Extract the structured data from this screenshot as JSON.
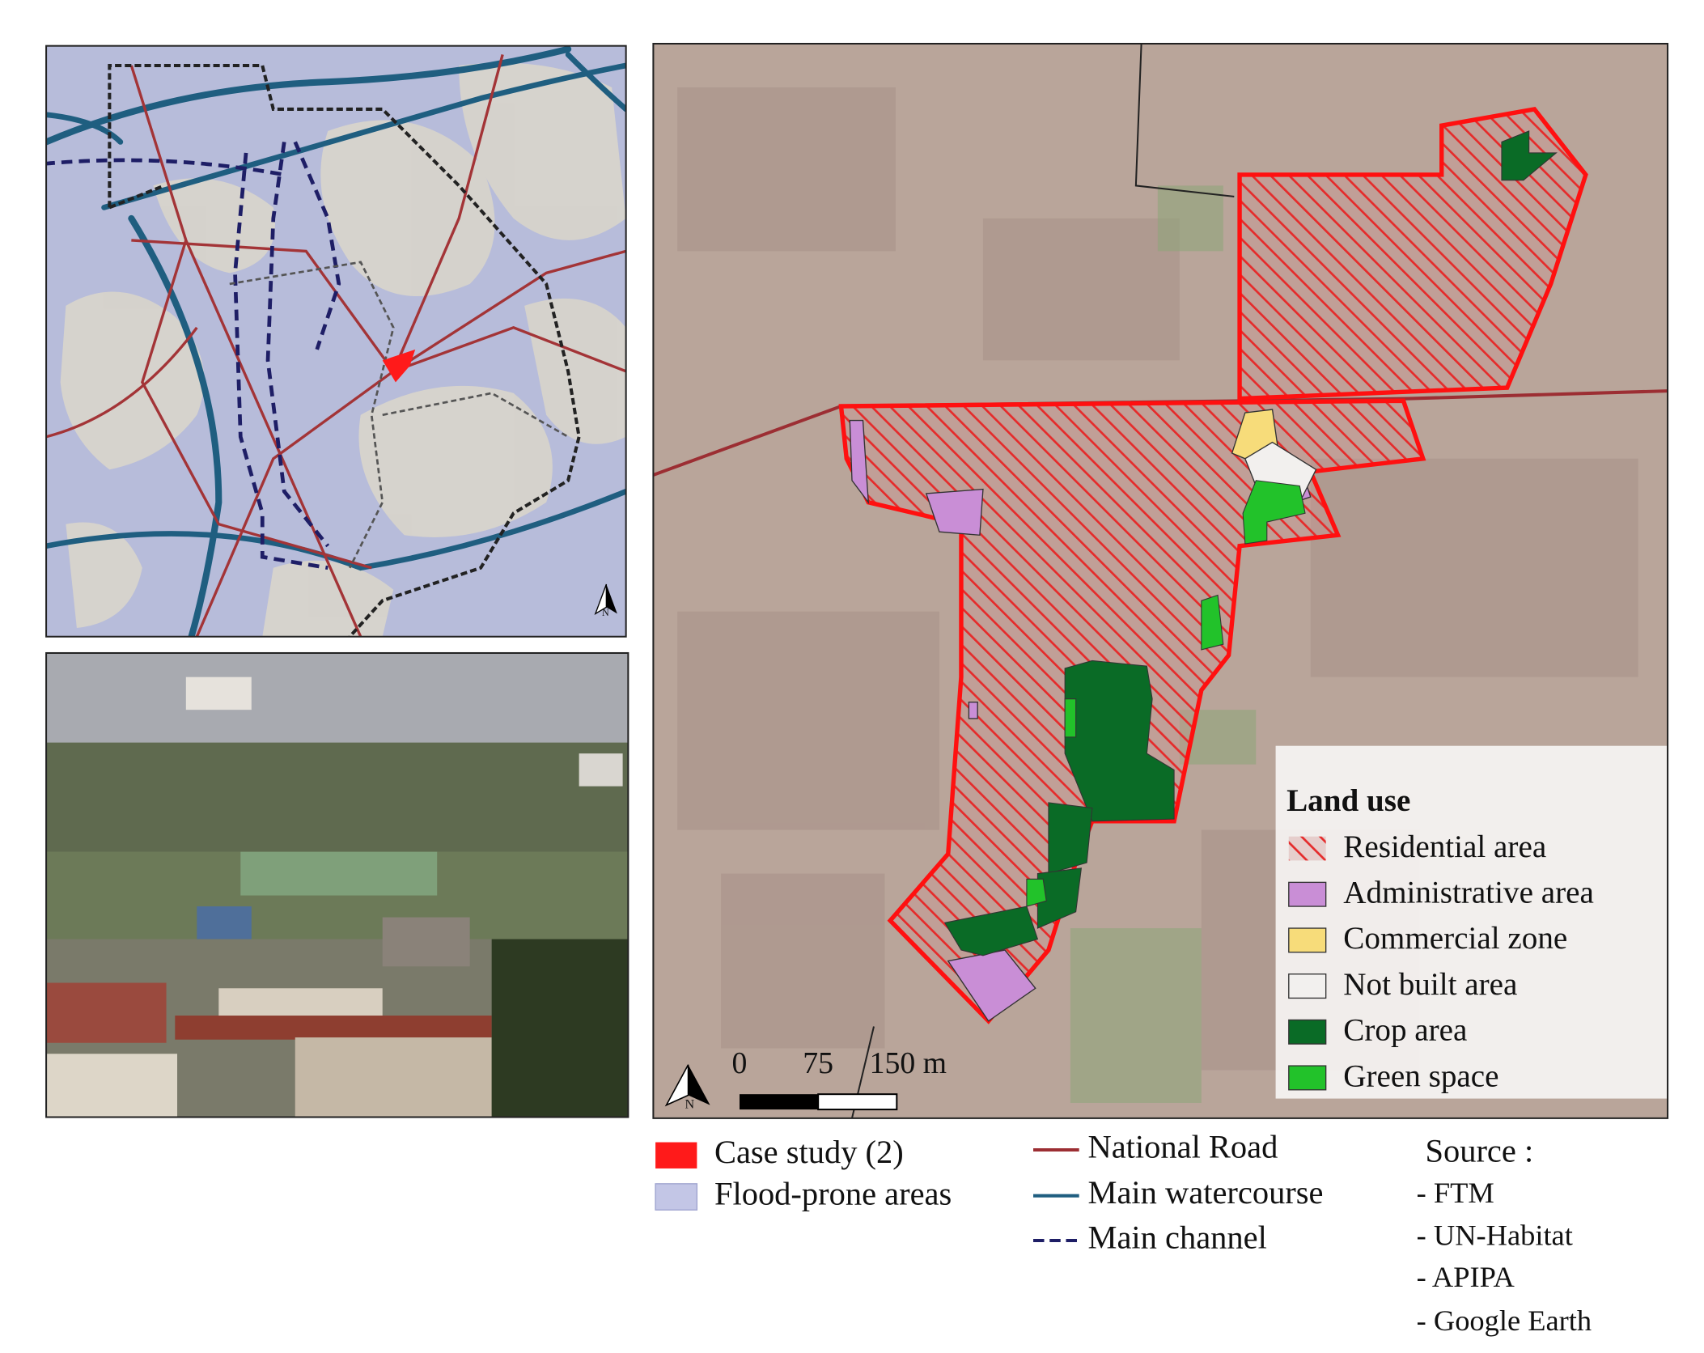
{
  "inset_map": {
    "north_label": "N"
  },
  "main_map": {
    "north_label": "N",
    "scale_bar": {
      "labels": [
        "0",
        "75",
        "150 m"
      ]
    },
    "legend": {
      "title": "Land use",
      "items": [
        "Residential area",
        "Administrative area",
        "Commercial zone",
        "Not built area",
        "Crop area",
        "Green space"
      ]
    }
  },
  "bottom_legend": {
    "items": [
      "Case study (2)",
      "Flood-prone areas",
      "National Road",
      "Main watercourse",
      "Main channel"
    ]
  },
  "source": {
    "title": "Source :",
    "items": [
      "- FTM",
      "- UN-Habitat",
      "- APIPA",
      "- Google Earth"
    ]
  }
}
